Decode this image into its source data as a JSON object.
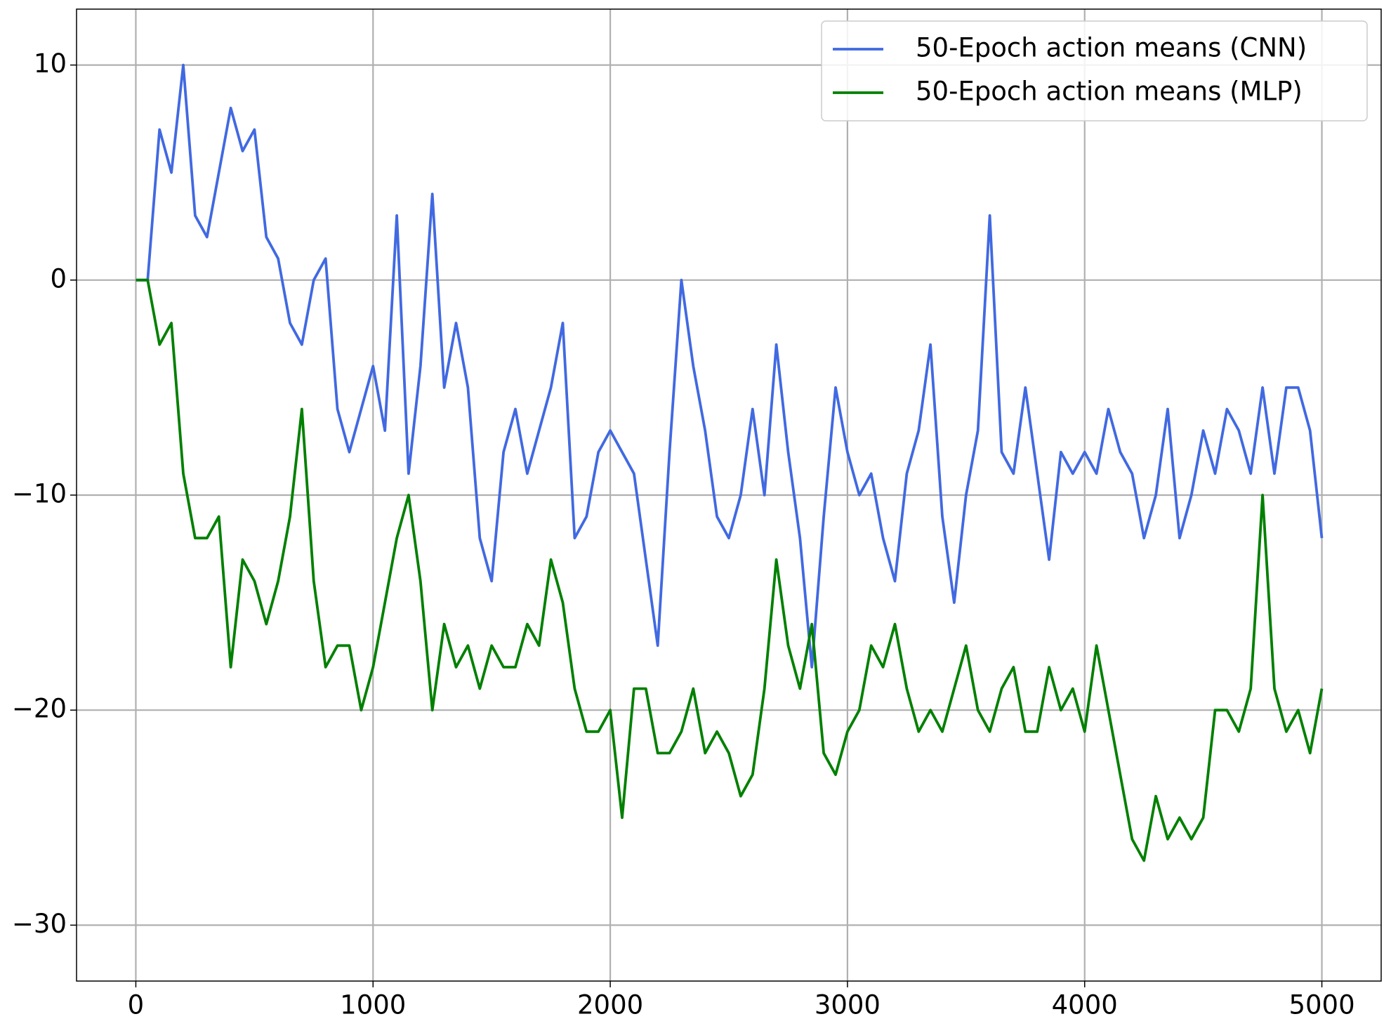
{
  "chart_data": {
    "type": "line",
    "x": [
      0,
      50,
      100,
      150,
      200,
      250,
      300,
      350,
      400,
      450,
      500,
      550,
      600,
      650,
      700,
      750,
      800,
      850,
      900,
      950,
      1000,
      1050,
      1100,
      1150,
      1200,
      1250,
      1300,
      1350,
      1400,
      1450,
      1500,
      1550,
      1600,
      1650,
      1700,
      1750,
      1800,
      1850,
      1900,
      1950,
      2000,
      2050,
      2100,
      2150,
      2200,
      2250,
      2300,
      2350,
      2400,
      2450,
      2500,
      2550,
      2600,
      2650,
      2700,
      2750,
      2800,
      2850,
      2900,
      2950,
      3000,
      3050,
      3100,
      3150,
      3200,
      3250,
      3300,
      3350,
      3400,
      3450,
      3500,
      3550,
      3600,
      3650,
      3700,
      3750,
      3800,
      3850,
      3900,
      3950,
      4000,
      4050,
      4100,
      4150,
      4200,
      4250,
      4300,
      4350,
      4400,
      4450,
      4500,
      4550,
      4600,
      4650,
      4700,
      4750,
      4800,
      4850,
      4900,
      4950,
      5000
    ],
    "series": [
      {
        "name": "50-Epoch action means (CNN)",
        "color": "#4169e1",
        "values": [
          0,
          0,
          7,
          5,
          10,
          3,
          2,
          5,
          8,
          6,
          7,
          2,
          1,
          -2,
          -3,
          0,
          1,
          -6,
          -8,
          -6,
          -4,
          -7,
          3,
          -9,
          -4,
          4,
          -5,
          -2,
          -5,
          -12,
          -14,
          -8,
          -6,
          -9,
          -7,
          -5,
          -2,
          -12,
          -11,
          -8,
          -7,
          -8,
          -9,
          -13,
          -17,
          -8,
          0,
          -4,
          -7,
          -11,
          -12,
          -10,
          -6,
          -10,
          -3,
          -8,
          -12,
          -18,
          -11,
          -5,
          -8,
          -10,
          -9,
          -12,
          -14,
          -9,
          -7,
          -3,
          -11,
          -15,
          -10,
          -7,
          3,
          -8,
          -9,
          -5,
          -9,
          -13,
          -8,
          -9,
          -8,
          -9,
          -6,
          -8,
          -9,
          -12,
          -10,
          -6,
          -12,
          -10,
          -7,
          -9,
          -6,
          -7,
          -9,
          -5,
          -9,
          -5,
          -5,
          -7,
          -12
        ]
      },
      {
        "name": "50-Epoch action means (MLP)",
        "color": "#008000",
        "values": [
          0,
          0,
          -3,
          -2,
          -9,
          -12,
          -12,
          -11,
          -18,
          -13,
          -14,
          -16,
          -14,
          -11,
          -6,
          -14,
          -18,
          -17,
          -17,
          -20,
          -18,
          -15,
          -12,
          -10,
          -14,
          -20,
          -16,
          -18,
          -17,
          -19,
          -17,
          -18,
          -18,
          -16,
          -17,
          -13,
          -15,
          -19,
          -21,
          -21,
          -20,
          -25,
          -19,
          -19,
          -22,
          -22,
          -21,
          -19,
          -22,
          -21,
          -22,
          -24,
          -23,
          -19,
          -13,
          -17,
          -19,
          -16,
          -22,
          -23,
          -21,
          -20,
          -17,
          -18,
          -16,
          -19,
          -21,
          -20,
          -21,
          -19,
          -17,
          -20,
          -21,
          -19,
          -18,
          -21,
          -21,
          -18,
          -20,
          -19,
          -21,
          -17,
          -20,
          -23,
          -26,
          -27,
          -24,
          -26,
          -25,
          -26,
          -25,
          -20,
          -20,
          -21,
          -19,
          -10,
          -19,
          -21,
          -20,
          -22,
          -19
        ]
      }
    ],
    "xlim": [
      -250,
      5250
    ],
    "ylim": [
      -32.6,
      12.6
    ],
    "xticks": [
      0,
      1000,
      2000,
      3000,
      4000,
      5000
    ],
    "yticks": [
      {
        "value": -30,
        "label": "−30"
      },
      {
        "value": -20,
        "label": "−20"
      },
      {
        "value": -10,
        "label": "−10"
      },
      0,
      10
    ],
    "grid": true,
    "legend": "upper right"
  }
}
